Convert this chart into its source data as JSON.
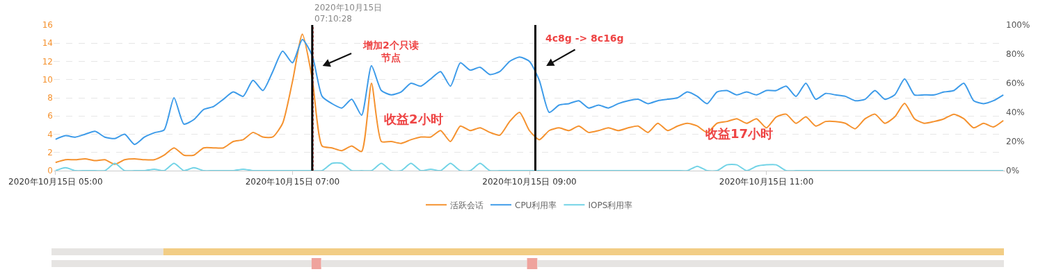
{
  "chart_data": {
    "type": "line",
    "x": [
      "2020-10-15T05:00",
      "2020-10-15T05:05",
      "2020-10-15T05:10",
      "2020-10-15T05:15",
      "2020-10-15T05:20",
      "2020-10-15T05:25",
      "2020-10-15T05:30",
      "2020-10-15T05:35",
      "2020-10-15T05:40",
      "2020-10-15T05:45",
      "2020-10-15T05:50",
      "2020-10-15T05:55",
      "2020-10-15T06:00",
      "2020-10-15T06:05",
      "2020-10-15T06:10",
      "2020-10-15T06:15",
      "2020-10-15T06:20",
      "2020-10-15T06:25",
      "2020-10-15T06:30",
      "2020-10-15T06:35",
      "2020-10-15T06:40",
      "2020-10-15T06:45",
      "2020-10-15T06:50",
      "2020-10-15T06:55",
      "2020-10-15T07:00",
      "2020-10-15T07:05",
      "2020-10-15T07:10",
      "2020-10-15T07:15",
      "2020-10-15T07:20",
      "2020-10-15T07:25",
      "2020-10-15T07:30",
      "2020-10-15T07:35",
      "2020-10-15T07:40",
      "2020-10-15T07:45",
      "2020-10-15T07:50",
      "2020-10-15T07:55",
      "2020-10-15T08:00",
      "2020-10-15T08:05",
      "2020-10-15T08:10",
      "2020-10-15T08:15",
      "2020-10-15T08:20",
      "2020-10-15T08:25",
      "2020-10-15T08:30",
      "2020-10-15T08:35",
      "2020-10-15T08:40",
      "2020-10-15T08:45",
      "2020-10-15T08:50",
      "2020-10-15T08:55",
      "2020-10-15T09:00",
      "2020-10-15T09:05",
      "2020-10-15T09:10",
      "2020-10-15T09:15",
      "2020-10-15T09:20",
      "2020-10-15T09:25",
      "2020-10-15T09:30",
      "2020-10-15T09:35",
      "2020-10-15T09:40",
      "2020-10-15T09:45",
      "2020-10-15T09:50",
      "2020-10-15T09:55",
      "2020-10-15T10:00",
      "2020-10-15T10:05",
      "2020-10-15T10:10",
      "2020-10-15T10:15",
      "2020-10-15T10:20",
      "2020-10-15T10:25",
      "2020-10-15T10:30",
      "2020-10-15T10:35",
      "2020-10-15T10:40",
      "2020-10-15T10:45",
      "2020-10-15T10:50",
      "2020-10-15T10:55",
      "2020-10-15T11:00",
      "2020-10-15T11:05",
      "2020-10-15T11:10",
      "2020-10-15T11:15",
      "2020-10-15T11:20",
      "2020-10-15T11:25",
      "2020-10-15T11:30",
      "2020-10-15T11:35",
      "2020-10-15T11:40",
      "2020-10-15T11:45",
      "2020-10-15T11:50",
      "2020-10-15T11:55",
      "2020-10-15T12:00",
      "2020-10-15T12:05",
      "2020-10-15T12:10",
      "2020-10-15T12:15",
      "2020-10-15T12:20",
      "2020-10-15T12:25",
      "2020-10-15T12:30",
      "2020-10-15T12:35",
      "2020-10-15T12:40",
      "2020-10-15T12:45",
      "2020-10-15T12:50",
      "2020-10-15T12:55",
      "2020-10-15T13:00"
    ],
    "series": [
      {
        "name": "活跃会话",
        "color": "#f5922f",
        "values": [
          0.9,
          1.2,
          1.2,
          1.3,
          1.1,
          1.2,
          0.7,
          1.2,
          1.3,
          1.2,
          1.2,
          1.7,
          2.5,
          1.7,
          1.7,
          2.5,
          2.5,
          2.5,
          3.2,
          3.4,
          4.2,
          3.7,
          3.7,
          5.2,
          9.8,
          15,
          10.1,
          2.7,
          2.5,
          2.2,
          2.7,
          2.1,
          9.6,
          3.2,
          3.2,
          3.0,
          3.4,
          3.7,
          3.7,
          4.4,
          3.2,
          4.9,
          4.4,
          4.7,
          4.2,
          3.9,
          5.4,
          6.4,
          4.4,
          3.4,
          4.4,
          4.7,
          4.4,
          4.9,
          4.2,
          4.4,
          4.7,
          4.4,
          4.7,
          4.9,
          4.2,
          5.2,
          4.4,
          4.9,
          5.2,
          4.9,
          4.2,
          5.2,
          5.4,
          5.7,
          5.2,
          5.7,
          4.7,
          5.9,
          6.2,
          5.2,
          5.9,
          4.9,
          5.4,
          5.4,
          5.2,
          4.6,
          5.7,
          6.2,
          5.2,
          5.9,
          7.4,
          5.7,
          5.2,
          5.4,
          5.7,
          6.2,
          5.7,
          4.7,
          5.2,
          4.8,
          5.5
        ]
      },
      {
        "name": "CPU利用率",
        "color": "#3d9be9",
        "axis": "y2",
        "values": [
          21.5,
          24,
          23,
          25,
          27,
          23,
          22,
          25,
          18,
          23,
          26,
          28,
          50,
          32,
          35,
          42,
          44,
          49,
          54,
          51,
          62,
          55,
          68,
          82,
          74,
          90,
          79,
          51,
          46,
          43,
          49,
          38,
          72,
          55,
          52,
          54,
          60,
          58,
          63,
          68,
          58,
          74,
          69,
          71,
          66,
          68,
          75,
          78,
          75,
          62,
          40,
          45,
          46,
          48,
          43,
          45,
          43,
          46,
          48,
          49,
          46,
          48,
          49,
          50,
          54,
          51,
          46,
          54,
          55,
          52,
          54,
          52,
          55,
          55,
          58,
          51,
          60,
          49,
          53,
          52,
          51,
          48,
          49,
          55,
          49,
          52,
          63,
          52,
          52,
          52,
          54,
          55,
          60,
          48,
          46,
          48,
          52
        ]
      },
      {
        "name": "IOPS利用率",
        "color": "#72d3e6",
        "axis": "y2",
        "values": [
          0,
          2,
          0,
          0,
          0,
          0,
          5,
          0,
          0,
          0,
          1,
          0,
          5,
          0,
          2,
          0,
          0,
          0,
          0,
          1,
          0,
          0,
          0,
          0,
          0,
          0,
          0,
          0,
          5,
          5,
          0,
          0,
          0,
          5,
          0,
          0,
          5,
          0,
          1,
          0,
          5,
          0,
          0,
          5,
          0,
          0,
          0,
          0,
          0,
          0,
          0,
          0,
          0,
          0,
          0,
          0,
          0,
          0,
          0,
          0,
          0,
          0,
          0,
          0,
          0,
          3,
          0,
          0,
          4,
          4,
          0,
          3,
          4,
          4,
          0,
          0,
          0,
          0,
          0,
          0,
          0,
          0,
          0,
          0,
          0,
          0,
          0,
          0,
          0,
          0,
          0,
          0,
          0,
          0,
          0,
          0,
          0
        ]
      }
    ],
    "xlim": [
      "2020-10-15T04:59",
      "2020-10-15T13:01"
    ],
    "xticks": [
      {
        "value": "2020-10-15T05:00",
        "label": "2020年10月15日 05:00"
      },
      {
        "value": "2020-10-15T07:00",
        "label": "2020年10月15日 07:00"
      },
      {
        "value": "2020-10-15T09:00",
        "label": "2020年10月15日 09:00"
      },
      {
        "value": "2020-10-15T11:00",
        "label": "2020年10月15日 11:00"
      }
    ],
    "ylim": [
      0,
      16
    ],
    "yticks": [
      0,
      2,
      4,
      6,
      8,
      10,
      12,
      14,
      16
    ],
    "y2lim": [
      0,
      100
    ],
    "y2ticks": [
      {
        "value": 0,
        "label": "0%"
      },
      {
        "value": 20,
        "label": "20%"
      },
      {
        "value": 40,
        "label": "40%"
      },
      {
        "value": 60,
        "label": "60%"
      },
      {
        "value": 80,
        "label": "80%"
      },
      {
        "value": 100,
        "label": "100%"
      }
    ],
    "ref_lines": [
      {
        "axis": "x",
        "value": "2020-10-15T07:10:28",
        "label": "2020年10月15日\n07:10:28",
        "color": "#e05555",
        "line_style": "dotted"
      },
      {
        "axis": "x",
        "value": "2020-10-15T07:10",
        "color": "#000000",
        "line_style": "solid"
      },
      {
        "axis": "x",
        "value": "2020-10-15T09:03",
        "color": "#000000",
        "line_style": "solid"
      }
    ],
    "annotations": [
      "增加2个只读节点",
      "4c8g -> 8c16g",
      "收益2小时",
      "收益17小时"
    ],
    "grid": "y",
    "legend": "bottom",
    "marker": "none",
    "line_style": "solid"
  }
}
